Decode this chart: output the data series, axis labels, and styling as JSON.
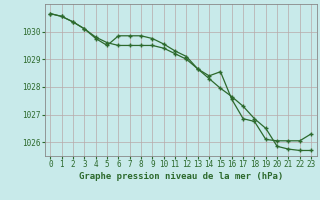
{
  "series1": {
    "x": [
      0,
      1,
      2,
      3,
      4,
      5,
      6,
      7,
      8,
      9,
      10,
      11,
      12,
      13,
      14,
      15,
      16,
      17,
      18,
      19,
      20,
      21,
      22,
      23
    ],
    "y": [
      1030.65,
      1030.55,
      1030.35,
      1030.1,
      1029.8,
      1029.6,
      1029.5,
      1029.5,
      1029.5,
      1029.5,
      1029.4,
      1029.2,
      1029.0,
      1028.65,
      1028.3,
      1027.95,
      1027.65,
      1027.3,
      1026.85,
      1026.5,
      1025.85,
      1025.75,
      1025.7,
      1025.7
    ]
  },
  "series2": {
    "x": [
      0,
      1,
      2,
      3,
      4,
      5,
      6,
      7,
      8,
      9,
      10,
      11,
      12,
      13,
      14,
      15,
      16,
      17,
      18,
      19,
      20,
      21,
      22,
      23
    ],
    "y": [
      1030.65,
      1030.55,
      1030.35,
      1030.1,
      1029.75,
      1029.5,
      1029.85,
      1029.85,
      1029.85,
      1029.75,
      1029.55,
      1029.3,
      1029.1,
      1028.65,
      1028.4,
      1028.55,
      1027.55,
      1026.85,
      1026.75,
      1026.1,
      1026.05,
      1026.05,
      1026.05,
      1026.3
    ]
  },
  "line_color": "#2d6a2d",
  "bg_color": "#c8eaea",
  "grid_color": "#b8a8a8",
  "xlabel": "Graphe pression niveau de la mer (hPa)",
  "ylim": [
    1025.5,
    1031.0
  ],
  "yticks": [
    1026,
    1027,
    1028,
    1029,
    1030
  ],
  "xticks": [
    0,
    1,
    2,
    3,
    4,
    5,
    6,
    7,
    8,
    9,
    10,
    11,
    12,
    13,
    14,
    15,
    16,
    17,
    18,
    19,
    20,
    21,
    22,
    23
  ],
  "marker": "+",
  "tick_fontsize": 5.5,
  "xlabel_fontsize": 6.5
}
